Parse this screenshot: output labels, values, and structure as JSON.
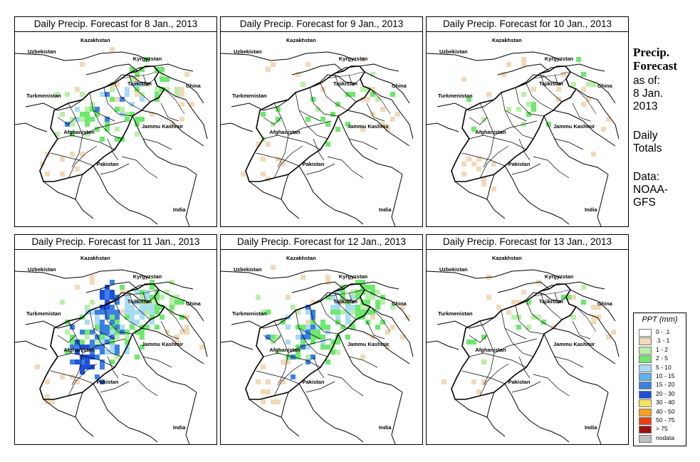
{
  "panels": [
    {
      "title": "Daily Precip. Forecast for  8 Jan., 2013"
    },
    {
      "title": "Daily Precip. Forecast for  9 Jan., 2013"
    },
    {
      "title": "Daily Precip. Forecast for  10 Jan., 2013"
    },
    {
      "title": "Daily Precip. Forecast for  11 Jan., 2013"
    },
    {
      "title": "Daily Precip. Forecast for  12 Jan., 2013"
    },
    {
      "title": "Daily Precip. Forecast for  13 Jan., 2013"
    }
  ],
  "map_labels": {
    "kazakhstan": "Kazakhstan",
    "uzbekistan": "Uzbekistan",
    "kyrgyzstan": "Kyrgyzstan",
    "tajikistan": "Tajikistan",
    "china": "China",
    "turkmenistan": "Turkmenistan",
    "jammu_kashmir": "Jammu Kashmir",
    "afghanistan": "Afghanistan",
    "pakistan": "Pakistan",
    "india": "India"
  },
  "side": {
    "title_line1": "Precip.",
    "title_line2": "Forecast",
    "asof_line1": "as of:",
    "asof_line2": "8 Jan.",
    "asof_line3": "2013",
    "totals_line1": "Daily",
    "totals_line2": "Totals",
    "data_line1": "Data:",
    "data_line2": "NOAA-",
    "data_line3": "GFS"
  },
  "legend": {
    "title": "PPT (mm)",
    "items": [
      {
        "label": "0 - .1",
        "color": "#ffffff"
      },
      {
        "label": ".1 - 1",
        "color": "#f2d9b8"
      },
      {
        "label": "1 - 2",
        "color": "#b8f0a8"
      },
      {
        "label": "2 - 5",
        "color": "#6ee86e"
      },
      {
        "label": "5 - 10",
        "color": "#a8dcf4"
      },
      {
        "label": "10 - 15",
        "color": "#5cb4ec"
      },
      {
        "label": "15 - 20",
        "color": "#3c80e4"
      },
      {
        "label": "20 - 30",
        "color": "#1e50d8"
      },
      {
        "label": "30 - 40",
        "color": "#f4e460"
      },
      {
        "label": "40 - 50",
        "color": "#f8a020"
      },
      {
        "label": "50 - 75",
        "color": "#e84010"
      },
      {
        "label": "> 75",
        "color": "#a01010"
      },
      {
        "label": "nodata",
        "color": "#c0c0c0"
      }
    ]
  },
  "colors": {
    "light": "#f2d9b8",
    "light_green": "#b8f0a8",
    "green": "#6ee86e",
    "sky": "#a8dcf4",
    "mid_blue": "#5cb4ec",
    "blue": "#3c80e4",
    "deep_blue": "#1e50d8"
  },
  "intensity": [
    {
      "light": 0.1,
      "light_green": 0.12,
      "green": 0.18,
      "sky": 0.04,
      "blue": 0.02,
      "deep_blue": 0.0
    },
    {
      "light": 0.1,
      "light_green": 0.04,
      "green": 0.06,
      "sky": 0.0,
      "blue": 0.0,
      "deep_blue": 0.0
    },
    {
      "light": 0.1,
      "light_green": 0.04,
      "green": 0.03,
      "sky": 0.0,
      "blue": 0.0,
      "deep_blue": 0.0
    },
    {
      "light": 0.12,
      "light_green": 0.14,
      "green": 0.3,
      "sky": 0.22,
      "blue": 0.28,
      "deep_blue": 0.14
    },
    {
      "light": 0.14,
      "light_green": 0.12,
      "green": 0.3,
      "sky": 0.12,
      "blue": 0.05,
      "deep_blue": 0.0
    },
    {
      "light": 0.08,
      "light_green": 0.03,
      "green": 0.04,
      "sky": 0.0,
      "blue": 0.0,
      "deep_blue": 0.0
    }
  ]
}
